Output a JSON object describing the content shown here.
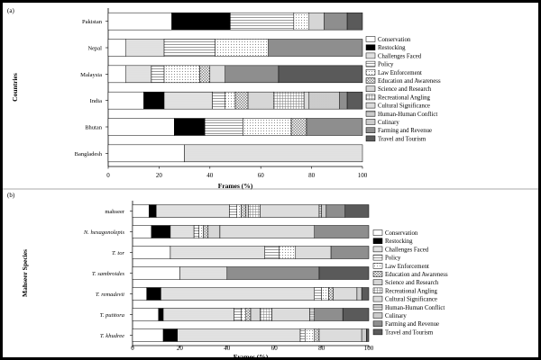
{
  "categories": [
    {
      "name": "Conservation",
      "fill": "#ffffff"
    },
    {
      "name": "Restocking",
      "fill": "#000000"
    },
    {
      "name": "Challenges Faced",
      "fill": "url(#p-hl-fine)"
    },
    {
      "name": "Policy",
      "fill": "url(#p-hl-wide)"
    },
    {
      "name": "Law Enforcement",
      "fill": "url(#p-dots-sparse)"
    },
    {
      "name": "Education and Awareness",
      "fill": "url(#p-checker)"
    },
    {
      "name": "Science and Research",
      "fill": "url(#p-vl)"
    },
    {
      "name": "Recreational Angling",
      "fill": "url(#p-grid)"
    },
    {
      "name": "Cultural Significance",
      "fill": "url(#p-hl-med)"
    },
    {
      "name": "Human-Human Conflict",
      "fill": "url(#p-hl-dense)"
    },
    {
      "name": "Culinary",
      "fill": "url(#p-dots-dense)"
    },
    {
      "name": "Farming and Revenue",
      "fill": "#8e8e8e"
    },
    {
      "name": "Travel and Tourism",
      "fill": "#5a5a5a"
    }
  ],
  "chart_data": [
    {
      "type": "bar",
      "orientation": "horizontal",
      "stacked": true,
      "panel_label": "(a)",
      "xlabel": "Frames (%)",
      "ylabel": "Countries",
      "xlim": [
        0,
        100
      ],
      "xticks": [
        0,
        20,
        40,
        60,
        80,
        100
      ],
      "legend_position": "right",
      "rows": [
        {
          "label": "Pakistan",
          "values": [
            25,
            23,
            0,
            25,
            6,
            0,
            6,
            0,
            0,
            0,
            0,
            9,
            6
          ]
        },
        {
          "label": "Nepal",
          "values": [
            7,
            0,
            15,
            20,
            21,
            0,
            0,
            0,
            0,
            0,
            0,
            37,
            0
          ]
        },
        {
          "label": "Malaysia",
          "values": [
            7,
            0,
            10,
            5,
            14,
            4,
            0,
            0,
            6,
            0,
            0,
            21,
            33
          ]
        },
        {
          "label": "India",
          "values": [
            14,
            8,
            19,
            5,
            4,
            5,
            10,
            12,
            2,
            0,
            12,
            3,
            6
          ]
        },
        {
          "label": "Bhutan",
          "values": [
            26,
            12,
            0,
            15,
            19,
            6,
            0,
            0,
            0,
            0,
            0,
            22,
            0
          ]
        },
        {
          "label": "Bangladesh",
          "values": [
            30,
            0,
            70,
            0,
            0,
            0,
            0,
            0,
            0,
            0,
            0,
            0,
            0
          ]
        }
      ]
    },
    {
      "type": "bar",
      "orientation": "horizontal",
      "stacked": true,
      "panel_label": "(b)",
      "xlabel": "Frames (%)",
      "ylabel": "Mahseer Species",
      "xlim": [
        0,
        100
      ],
      "xticks": [
        0,
        20,
        40,
        60,
        80,
        100
      ],
      "legend_position": "right",
      "rows": [
        {
          "label": "mahseer",
          "italic": false,
          "values": [
            7,
            3,
            31,
            3,
            2,
            2,
            1,
            5,
            25,
            1,
            2,
            8,
            10
          ]
        },
        {
          "label": "N. hexagonolepis",
          "italic": true,
          "values": [
            8,
            8,
            10,
            2,
            2,
            2,
            5,
            0,
            40,
            0,
            0,
            23,
            0
          ]
        },
        {
          "label": "T. tor",
          "italic": true,
          "values": [
            16,
            0,
            40,
            6,
            7,
            0,
            0,
            0,
            15,
            0,
            0,
            16,
            0
          ]
        },
        {
          "label": "T. sambroides",
          "italic": true,
          "values": [
            20,
            0,
            20,
            0,
            0,
            0,
            0,
            0,
            0,
            0,
            0,
            39,
            21
          ]
        },
        {
          "label": "T. remadevii",
          "italic": true,
          "values": [
            6,
            6,
            65,
            3,
            3,
            2,
            0,
            0,
            10,
            0,
            2,
            0,
            3
          ]
        },
        {
          "label": "T. putitora",
          "italic": true,
          "values": [
            11,
            2,
            30,
            3,
            2,
            2,
            4,
            5,
            16,
            2,
            0,
            12,
            11
          ]
        },
        {
          "label": "T. khudree",
          "italic": true,
          "values": [
            13,
            6,
            52,
            2,
            4,
            2,
            0,
            0,
            18,
            0,
            2,
            0,
            1
          ]
        }
      ]
    }
  ]
}
